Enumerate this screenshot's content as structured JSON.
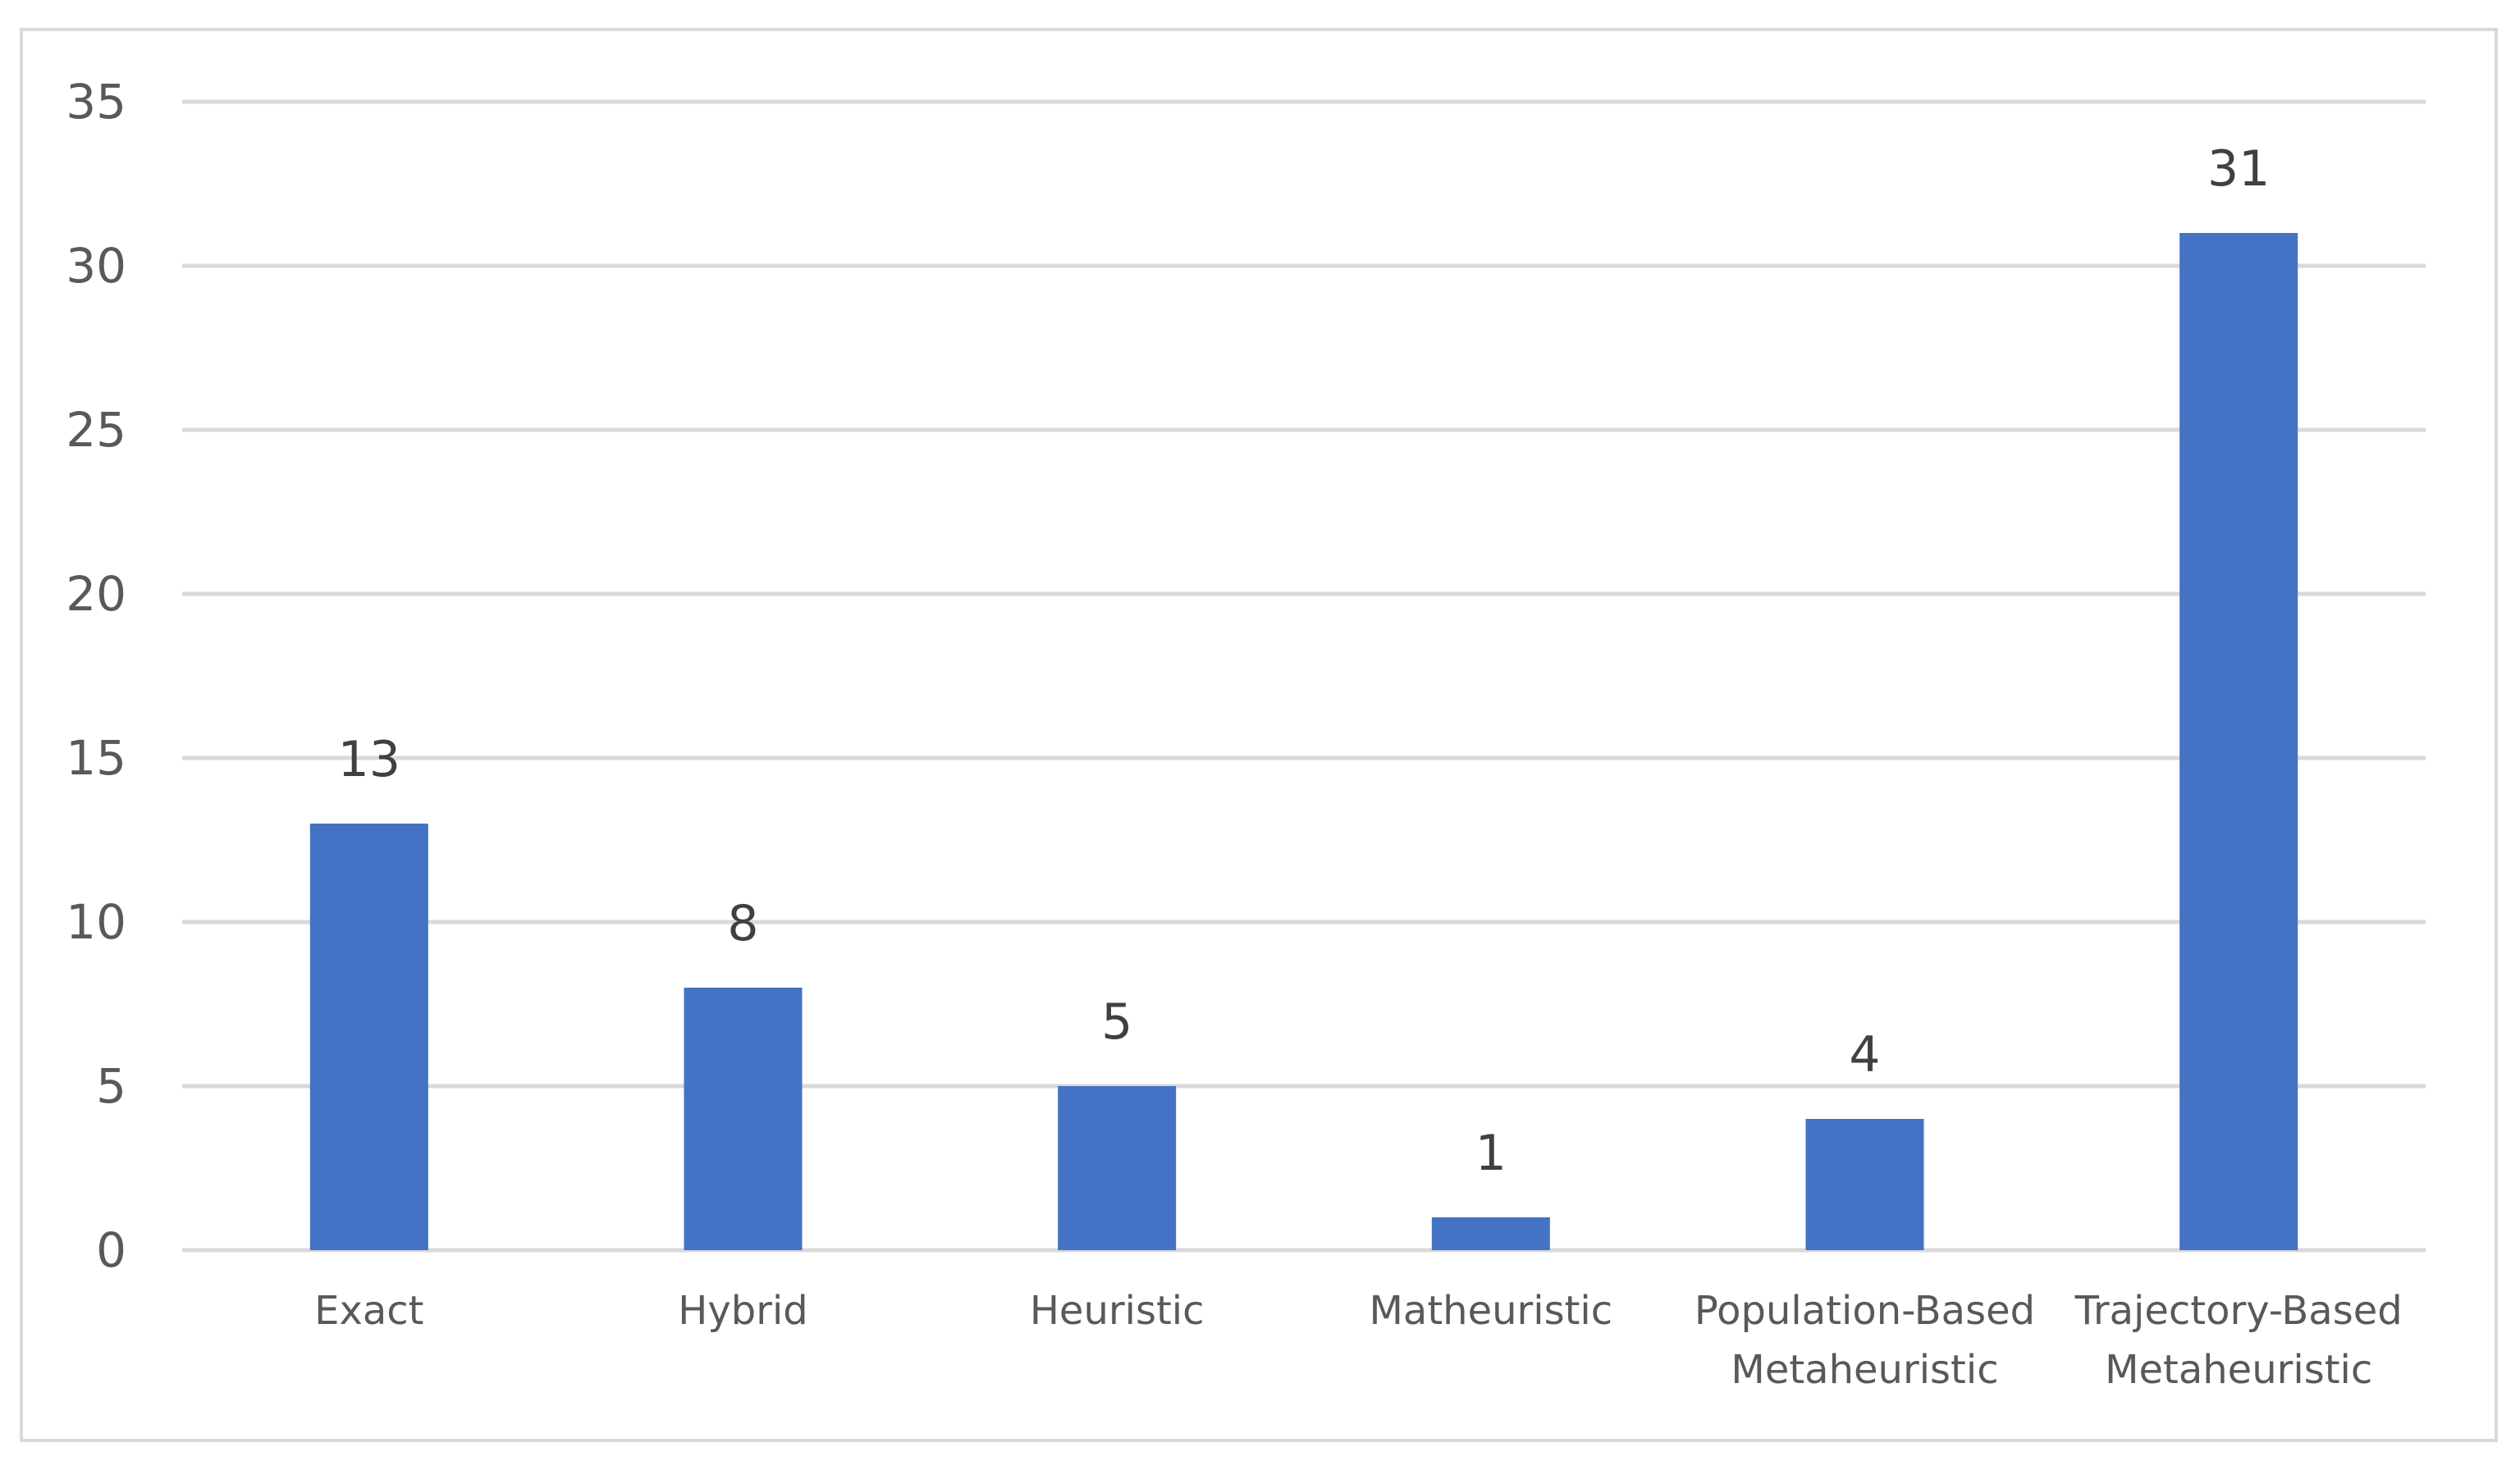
{
  "chart_data": {
    "type": "bar",
    "categories": [
      [
        "Exact"
      ],
      [
        "Hybrid"
      ],
      [
        "Heuristic"
      ],
      [
        "Matheuristic"
      ],
      [
        "Population-Based",
        "Metaheuristic"
      ],
      [
        "Trajectory-Based",
        "Metaheuristic"
      ]
    ],
    "values": [
      13,
      8,
      5,
      1,
      4,
      31
    ],
    "title": "",
    "xlabel": "",
    "ylabel": "",
    "ylim": [
      0,
      35
    ],
    "yticks": [
      0,
      5,
      10,
      15,
      20,
      25,
      30,
      35
    ],
    "grid": true,
    "legend": "none",
    "bar_color": "#4472c4",
    "data_labels": [
      "13",
      "8",
      "5",
      "1",
      "4",
      "31"
    ],
    "ytick_labels": [
      "0",
      "5",
      "10",
      "15",
      "20",
      "25",
      "30",
      "35"
    ]
  }
}
